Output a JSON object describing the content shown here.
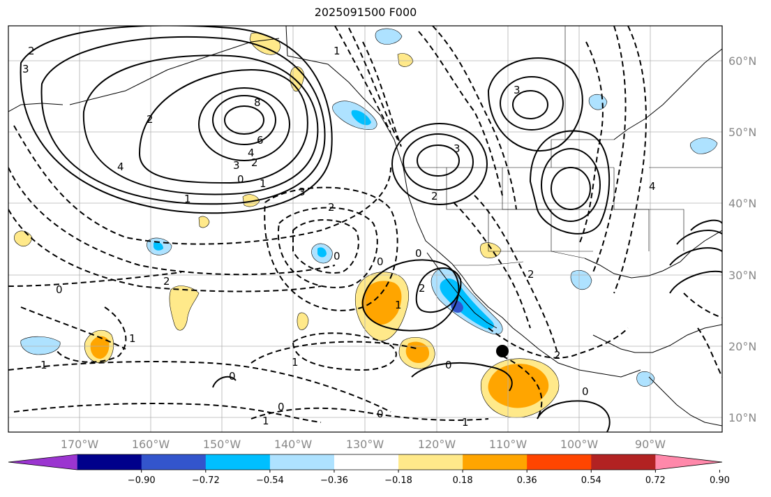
{
  "title": "2025091500 F000",
  "lat_labels": [
    "60°N",
    "50°N",
    "40°N",
    "30°N",
    "20°N",
    "10°N"
  ],
  "lon_labels": [
    "170°W",
    "160°W",
    "150°W",
    "140°W",
    "130°W",
    "120°W",
    "110°W",
    "100°W",
    "90°W"
  ],
  "colorbar": {
    "ticks": [
      "−0.90",
      "−0.72",
      "−0.54",
      "−0.36",
      "−0.18",
      "0.18",
      "0.36",
      "0.54",
      "0.72",
      "0.90"
    ],
    "colors": [
      "#9b35d0",
      "#00008b",
      "#3355cc",
      "#00bfff",
      "#aee2ff",
      "#ffffff",
      "#ffe98a",
      "#ffa500",
      "#ff4500",
      "#b22222",
      "#ff88aa"
    ]
  },
  "contour_labels": [
    {
      "text": "2"
    },
    {
      "text": "3"
    },
    {
      "text": "2"
    },
    {
      "text": "8"
    },
    {
      "text": "6"
    },
    {
      "text": "4"
    },
    {
      "text": "3"
    },
    {
      "text": "2"
    },
    {
      "text": "4"
    },
    {
      "text": "1"
    },
    {
      "text": "0"
    },
    {
      "text": "1"
    },
    {
      "text": "3"
    },
    {
      "text": "2"
    },
    {
      "text": "2"
    },
    {
      "text": "1"
    },
    {
      "text": "3"
    },
    {
      "text": "2"
    },
    {
      "text": "3"
    },
    {
      "text": "1"
    },
    {
      "text": "0"
    },
    {
      "text": "2"
    },
    {
      "text": "0"
    },
    {
      "text": "0"
    },
    {
      "text": "1"
    },
    {
      "text": "1"
    },
    {
      "text": "0"
    },
    {
      "text": "1"
    },
    {
      "text": "0"
    },
    {
      "text": "0"
    },
    {
      "text": "1"
    },
    {
      "text": "0"
    },
    {
      "text": "0"
    },
    {
      "text": "1"
    },
    {
      "text": "4"
    },
    {
      "text": "0"
    },
    {
      "text": "2"
    },
    {
      "text": "2"
    }
  ],
  "marker": "storm-center-dot"
}
